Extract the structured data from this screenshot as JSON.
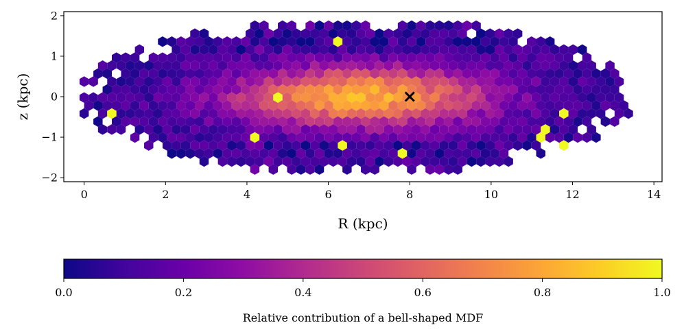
{
  "chart_data": {
    "type": "heatmap",
    "subtype": "hexbin",
    "xlabel": "R (kpc)",
    "ylabel": "z (kpc)",
    "xlim": [
      -0.5,
      14.2
    ],
    "ylim": [
      -2.1,
      2.1
    ],
    "xticks": [
      0,
      2,
      4,
      6,
      8,
      10,
      12,
      14
    ],
    "yticks": [
      -2,
      -1,
      0,
      1,
      2
    ],
    "grid": false,
    "colormap": "plasma",
    "colorbar": {
      "label": "Relative contribution of a bell-shaped MDF",
      "range": [
        0.0,
        1.0
      ],
      "ticks": [
        "0.0",
        "0.2",
        "0.4",
        "0.6",
        "0.8",
        "1.0"
      ],
      "orientation": "horizontal",
      "placement": "bottom"
    },
    "marker": {
      "symbol": "x",
      "x": 8.0,
      "y": 0.0,
      "color": "#000000"
    },
    "density_model": {
      "description_free": true,
      "peak_value": 0.82,
      "peak_R": 6.8,
      "peak_z": 0.0,
      "extent_R": [
        0.0,
        13.5
      ],
      "extent_z": [
        -1.9,
        1.9
      ],
      "low_value_regions_value": 0.02
    },
    "hexbin_gridsize": 60
  }
}
